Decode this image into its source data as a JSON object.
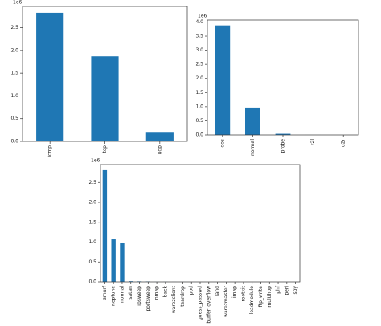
{
  "chart_data": [
    {
      "type": "bar",
      "offset_label": "1e6",
      "color": "#1f77b4",
      "categories": [
        "icmp",
        "tcp",
        "udp"
      ],
      "values": [
        2.83,
        1.87,
        0.19
      ],
      "ylim": [
        0,
        2.97
      ],
      "yticks": [
        {
          "value": 0,
          "label": "0.0"
        },
        0.5,
        {
          "value": 1,
          "label": "1.0"
        },
        1.5,
        {
          "value": 2,
          "label": "2.0"
        },
        2.5
      ]
    },
    {
      "type": "bar",
      "offset_label": "1e6",
      "color": "#1f77b4",
      "categories": [
        "dos",
        "normal",
        "probe",
        "r2l",
        "u2r"
      ],
      "values": [
        3.88,
        0.97,
        0.041,
        0.001,
        5e-05
      ],
      "ylim": [
        0,
        4.07
      ],
      "yticks": [
        {
          "value": 0,
          "label": "0.0"
        },
        0.5,
        {
          "value": 1,
          "label": "1.0"
        },
        1.5,
        {
          "value": 2,
          "label": "2.0"
        },
        2.5,
        {
          "value": 3,
          "label": "3.0"
        },
        3.5,
        {
          "value": 4,
          "label": "4.0"
        }
      ]
    },
    {
      "type": "bar",
      "offset_label": "1e6",
      "color": "#1f77b4",
      "categories": [
        "smurf",
        "neptune",
        "normal",
        "satan",
        "ipsweep",
        "portsweep",
        "nmap",
        "back",
        "warezclient",
        "teardrop",
        "pod",
        "guess_passwd",
        "buffer_overflow",
        "land",
        "warezmaster",
        "imap",
        "rootkit",
        "loadmodule",
        "ftp_write",
        "multihop",
        "phf",
        "perl",
        "spy"
      ],
      "values": [
        2.81,
        1.07,
        0.97,
        0.016,
        0.012,
        0.01,
        0.002,
        0.002,
        0.001,
        0.001,
        0.0003,
        5e-05,
        3e-05,
        2e-05,
        2e-05,
        1e-05,
        1e-05,
        1e-05,
        1e-05,
        1e-05,
        4e-06,
        3e-06,
        2e-06
      ],
      "ylim": [
        0,
        2.95
      ],
      "yticks": [
        {
          "value": 0,
          "label": "0.0"
        },
        0.5,
        {
          "value": 1,
          "label": "1.0"
        },
        1.5,
        {
          "value": 2,
          "label": "2.0"
        },
        2.5
      ]
    }
  ]
}
